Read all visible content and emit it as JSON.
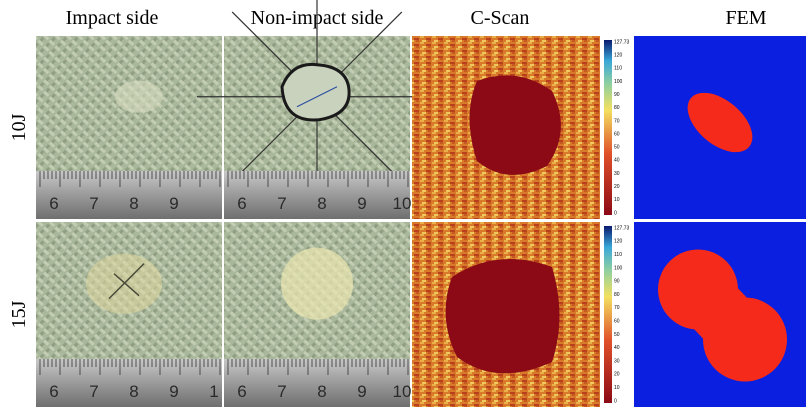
{
  "columns": [
    "Impact side",
    "Non-impact side",
    "C-Scan",
    "FEM"
  ],
  "rows": [
    {
      "label": "10J",
      "rulers": [
        [
          "6",
          "7",
          "8",
          "9"
        ],
        [
          "6",
          "7",
          "8",
          "9",
          "10"
        ]
      ]
    },
    {
      "label": "15J",
      "rulers": [
        [
          "6",
          "7",
          "8",
          "9",
          "1"
        ],
        [
          "6",
          "7",
          "8",
          "9",
          "10"
        ]
      ]
    }
  ],
  "colorbar": [
    "127.73",
    "120",
    "110",
    "100",
    "90",
    "80",
    "70",
    "60",
    "50",
    "40",
    "30",
    "20",
    "10",
    "0"
  ]
}
